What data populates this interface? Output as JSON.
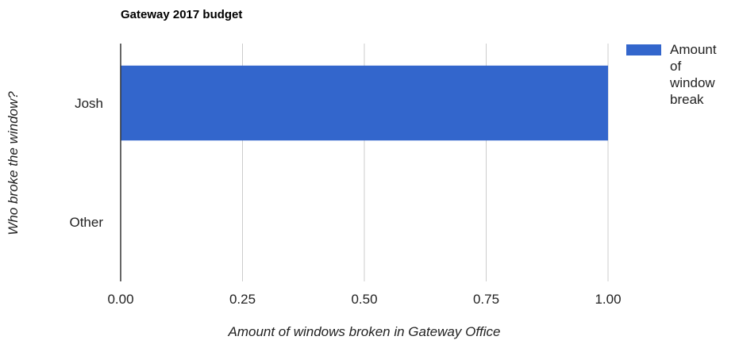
{
  "chart_data": {
    "type": "bar",
    "orientation": "horizontal",
    "title": "Gateway 2017 budget",
    "categories": [
      "Josh",
      "Other"
    ],
    "series": [
      {
        "name": "Amount of window break",
        "values": [
          1,
          0
        ],
        "color": "#3366cc"
      }
    ],
    "xlabel": "Amount of windows broken in Gateway Office",
    "ylabel": "Who broke the window?",
    "xlim": [
      0,
      1
    ],
    "x_ticks": [
      "0.00",
      "0.25",
      "0.50",
      "0.75",
      "1.00"
    ],
    "grid": true,
    "legend": {
      "position": "right",
      "lines": [
        "Amount",
        "of",
        "window",
        "break"
      ]
    }
  }
}
